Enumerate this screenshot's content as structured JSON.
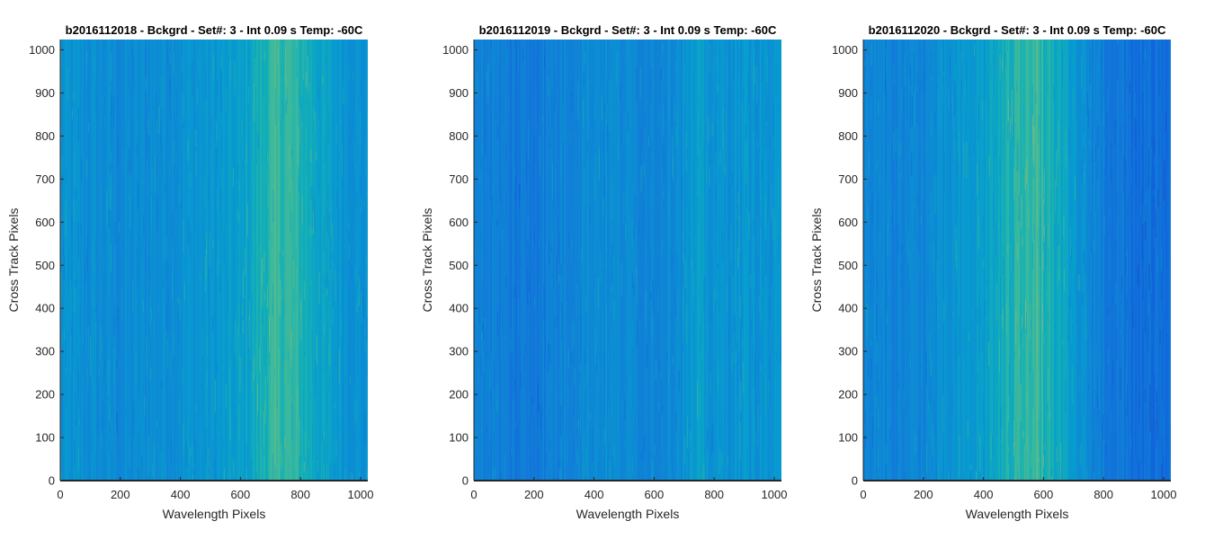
{
  "figure": {
    "panel_count": 3
  },
  "chart_data": [
    {
      "type": "heatmap",
      "title": "b2016112018 - Bckgrd - Set#: 3 - Int 0.09 s Temp: -60C",
      "xlabel": "Wavelength Pixels",
      "ylabel": "Cross Track Pixels",
      "xlim": [
        0,
        1024
      ],
      "ylim": [
        0,
        1024
      ],
      "xticks": [
        0,
        200,
        400,
        600,
        800,
        1000
      ],
      "yticks": [
        0,
        100,
        200,
        300,
        400,
        500,
        600,
        700,
        800,
        900,
        1000
      ],
      "colormap": "parula",
      "column_intensity_profile": {
        "x": [
          0,
          100,
          200,
          300,
          400,
          500,
          600,
          650,
          700,
          750,
          800,
          850,
          900,
          950,
          1024
        ],
        "level": [
          0.4,
          0.38,
          0.36,
          0.38,
          0.4,
          0.42,
          0.45,
          0.52,
          0.58,
          0.6,
          0.55,
          0.5,
          0.45,
          0.42,
          0.38
        ]
      }
    },
    {
      "type": "heatmap",
      "title": "b2016112019 - Bckgrd - Set#: 3 - Int 0.09 s Temp: -60C",
      "xlabel": "Wavelength Pixels",
      "ylabel": "Cross Track Pixels",
      "xlim": [
        0,
        1024
      ],
      "ylim": [
        0,
        1024
      ],
      "xticks": [
        0,
        200,
        400,
        600,
        800,
        1000
      ],
      "yticks": [
        0,
        100,
        200,
        300,
        400,
        500,
        600,
        700,
        800,
        900,
        1000
      ],
      "colormap": "parula",
      "column_intensity_profile": {
        "x": [
          0,
          100,
          150,
          200,
          300,
          400,
          500,
          600,
          700,
          750,
          800,
          900,
          1024
        ],
        "level": [
          0.34,
          0.3,
          0.28,
          0.3,
          0.34,
          0.38,
          0.36,
          0.35,
          0.4,
          0.44,
          0.4,
          0.42,
          0.4
        ]
      }
    },
    {
      "type": "heatmap",
      "title": "b2016112020 - Bckgrd - Set#: 3 - Int 0.09 s Temp: -60C",
      "xlabel": "Wavelength Pixels",
      "ylabel": "Cross Track Pixels",
      "xlim": [
        0,
        1024
      ],
      "ylim": [
        0,
        1024
      ],
      "xticks": [
        0,
        200,
        400,
        600,
        800,
        1000
      ],
      "yticks": [
        0,
        100,
        200,
        300,
        400,
        500,
        600,
        700,
        800,
        900,
        1000
      ],
      "colormap": "parula",
      "column_intensity_profile": {
        "x": [
          0,
          100,
          200,
          300,
          400,
          500,
          550,
          600,
          700,
          800,
          900,
          1000,
          1024
        ],
        "level": [
          0.34,
          0.33,
          0.35,
          0.4,
          0.46,
          0.56,
          0.62,
          0.56,
          0.42,
          0.3,
          0.24,
          0.22,
          0.22
        ]
      }
    }
  ]
}
